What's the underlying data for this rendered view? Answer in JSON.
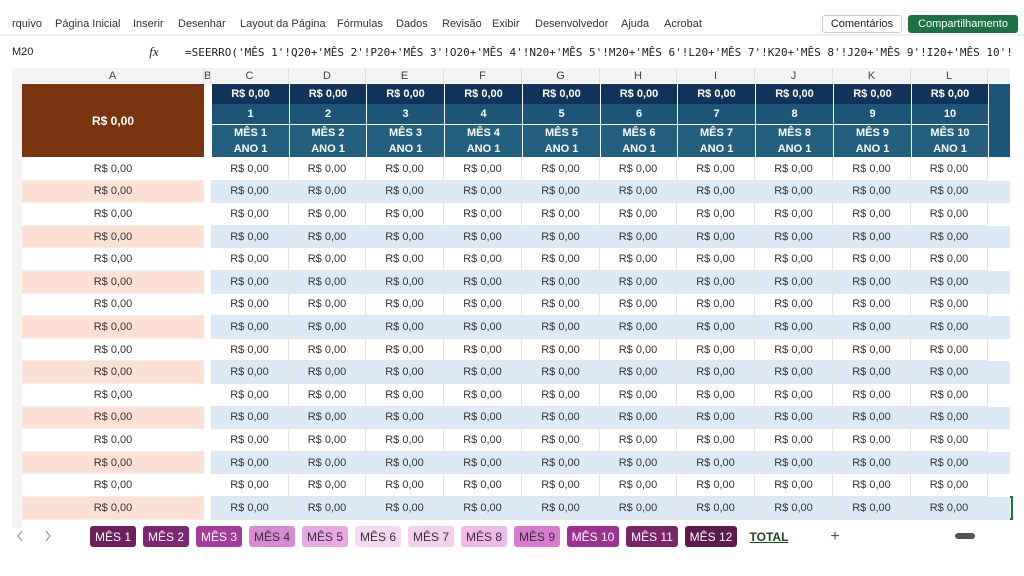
{
  "menu": [
    "rquivo",
    "Página Inicial",
    "Inserir",
    "Desenhar",
    "Layout da Página",
    "Fórmulas",
    "Dados",
    "Revisão",
    "Exibir",
    "Desenvolvedor",
    "Ajuda",
    "Acrobat"
  ],
  "buttons": {
    "comments": "Comentários",
    "share": "Compartilhamento"
  },
  "name_box": "M20",
  "fx": "fx",
  "formula": "=SEERRO('MÊS 1'!Q20+'MÊS 2'!P20+'MÊS 3'!O20+'MÊS 4'!N20+'MÊS 5'!M20+'MÊS 6'!L20+'MÊS 7'!K20+'MÊS 8'!J20+'MÊS 9'!I20+'MÊS 10'!",
  "columns": [
    "A",
    "B",
    "C",
    "D",
    "E",
    "F",
    "G",
    "H",
    "I",
    "J",
    "K",
    "L"
  ],
  "header": {
    "a_total": "R$ 0,00",
    "months": [
      {
        "total": "R$ 0,00",
        "number": 1,
        "month": "MÊS 1",
        "year": "ANO 1"
      },
      {
        "total": "R$ 0,00",
        "number": 2,
        "month": "MÊS 2",
        "year": "ANO 1"
      },
      {
        "total": "R$ 0,00",
        "number": 3,
        "month": "MÊS 3",
        "year": "ANO 1"
      },
      {
        "total": "R$ 0,00",
        "number": 4,
        "month": "MÊS 4",
        "year": "ANO 1"
      },
      {
        "total": "R$ 0,00",
        "number": 5,
        "month": "MÊS 5",
        "year": "ANO 1"
      },
      {
        "total": "R$ 0,00",
        "number": 6,
        "month": "MÊS 6",
        "year": "ANO 1"
      },
      {
        "total": "R$ 0,00",
        "number": 7,
        "month": "MÊS 7",
        "year": "ANO 1"
      },
      {
        "total": "R$ 0,00",
        "number": 8,
        "month": "MÊS 8",
        "year": "ANO 1"
      },
      {
        "total": "R$ 0,00",
        "number": 9,
        "month": "MÊS 9",
        "year": "ANO 1"
      },
      {
        "total": "R$ 0,00",
        "number": 10,
        "month": "MÊS 10",
        "year": "ANO 1"
      }
    ]
  },
  "rows": [
    {
      "a": "R$ 0,00",
      "cells": [
        "R$ 0,00",
        "R$ 0,00",
        "R$ 0,00",
        "R$ 0,00",
        "R$ 0,00",
        "R$ 0,00",
        "R$ 0,00",
        "R$ 0,00",
        "R$ 0,00",
        "R$ 0,00"
      ]
    },
    {
      "a": "R$ 0,00",
      "cells": [
        "R$ 0,00",
        "R$ 0,00",
        "R$ 0,00",
        "R$ 0,00",
        "R$ 0,00",
        "R$ 0,00",
        "R$ 0,00",
        "R$ 0,00",
        "R$ 0,00",
        "R$ 0,00"
      ]
    },
    {
      "a": "R$ 0,00",
      "cells": [
        "R$ 0,00",
        "R$ 0,00",
        "R$ 0,00",
        "R$ 0,00",
        "R$ 0,00",
        "R$ 0,00",
        "R$ 0,00",
        "R$ 0,00",
        "R$ 0,00",
        "R$ 0,00"
      ]
    },
    {
      "a": "R$ 0,00",
      "cells": [
        "R$ 0,00",
        "R$ 0,00",
        "R$ 0,00",
        "R$ 0,00",
        "R$ 0,00",
        "R$ 0,00",
        "R$ 0,00",
        "R$ 0,00",
        "R$ 0,00",
        "R$ 0,00"
      ]
    },
    {
      "a": "R$ 0,00",
      "cells": [
        "R$ 0,00",
        "R$ 0,00",
        "R$ 0,00",
        "R$ 0,00",
        "R$ 0,00",
        "R$ 0,00",
        "R$ 0,00",
        "R$ 0,00",
        "R$ 0,00",
        "R$ 0,00"
      ]
    },
    {
      "a": "R$ 0,00",
      "cells": [
        "R$ 0,00",
        "R$ 0,00",
        "R$ 0,00",
        "R$ 0,00",
        "R$ 0,00",
        "R$ 0,00",
        "R$ 0,00",
        "R$ 0,00",
        "R$ 0,00",
        "R$ 0,00"
      ]
    },
    {
      "a": "R$ 0,00",
      "cells": [
        "R$ 0,00",
        "R$ 0,00",
        "R$ 0,00",
        "R$ 0,00",
        "R$ 0,00",
        "R$ 0,00",
        "R$ 0,00",
        "R$ 0,00",
        "R$ 0,00",
        "R$ 0,00"
      ]
    },
    {
      "a": "R$ 0,00",
      "cells": [
        "R$ 0,00",
        "R$ 0,00",
        "R$ 0,00",
        "R$ 0,00",
        "R$ 0,00",
        "R$ 0,00",
        "R$ 0,00",
        "R$ 0,00",
        "R$ 0,00",
        "R$ 0,00"
      ]
    },
    {
      "a": "R$ 0,00",
      "cells": [
        "R$ 0,00",
        "R$ 0,00",
        "R$ 0,00",
        "R$ 0,00",
        "R$ 0,00",
        "R$ 0,00",
        "R$ 0,00",
        "R$ 0,00",
        "R$ 0,00",
        "R$ 0,00"
      ]
    },
    {
      "a": "R$ 0,00",
      "cells": [
        "R$ 0,00",
        "R$ 0,00",
        "R$ 0,00",
        "R$ 0,00",
        "R$ 0,00",
        "R$ 0,00",
        "R$ 0,00",
        "R$ 0,00",
        "R$ 0,00",
        "R$ 0,00"
      ]
    },
    {
      "a": "R$ 0,00",
      "cells": [
        "R$ 0,00",
        "R$ 0,00",
        "R$ 0,00",
        "R$ 0,00",
        "R$ 0,00",
        "R$ 0,00",
        "R$ 0,00",
        "R$ 0,00",
        "R$ 0,00",
        "R$ 0,00"
      ]
    },
    {
      "a": "R$ 0,00",
      "cells": [
        "R$ 0,00",
        "R$ 0,00",
        "R$ 0,00",
        "R$ 0,00",
        "R$ 0,00",
        "R$ 0,00",
        "R$ 0,00",
        "R$ 0,00",
        "R$ 0,00",
        "R$ 0,00"
      ]
    },
    {
      "a": "R$ 0,00",
      "cells": [
        "R$ 0,00",
        "R$ 0,00",
        "R$ 0,00",
        "R$ 0,00",
        "R$ 0,00",
        "R$ 0,00",
        "R$ 0,00",
        "R$ 0,00",
        "R$ 0,00",
        "R$ 0,00"
      ]
    },
    {
      "a": "R$ 0,00",
      "cells": [
        "R$ 0,00",
        "R$ 0,00",
        "R$ 0,00",
        "R$ 0,00",
        "R$ 0,00",
        "R$ 0,00",
        "R$ 0,00",
        "R$ 0,00",
        "R$ 0,00",
        "R$ 0,00"
      ]
    },
    {
      "a": "R$ 0,00",
      "cells": [
        "R$ 0,00",
        "R$ 0,00",
        "R$ 0,00",
        "R$ 0,00",
        "R$ 0,00",
        "R$ 0,00",
        "R$ 0,00",
        "R$ 0,00",
        "R$ 0,00",
        "R$ 0,00"
      ]
    },
    {
      "a": "R$ 0,00",
      "cells": [
        "R$ 0,00",
        "R$ 0,00",
        "R$ 0,00",
        "R$ 0,00",
        "R$ 0,00",
        "R$ 0,00",
        "R$ 0,00",
        "R$ 0,00",
        "R$ 0,00",
        "R$ 0,00"
      ]
    }
  ],
  "tabs": [
    "MÊS 1",
    "MÊS 2",
    "MÊS 3",
    "MÊS 4",
    "MÊS 5",
    "MÊS 6",
    "MÊS 7",
    "MÊS 8",
    "MÊS 9",
    "MÊS 10",
    "MÊS 11",
    "MÊS 12",
    "TOTAL"
  ],
  "new_tab": "+"
}
